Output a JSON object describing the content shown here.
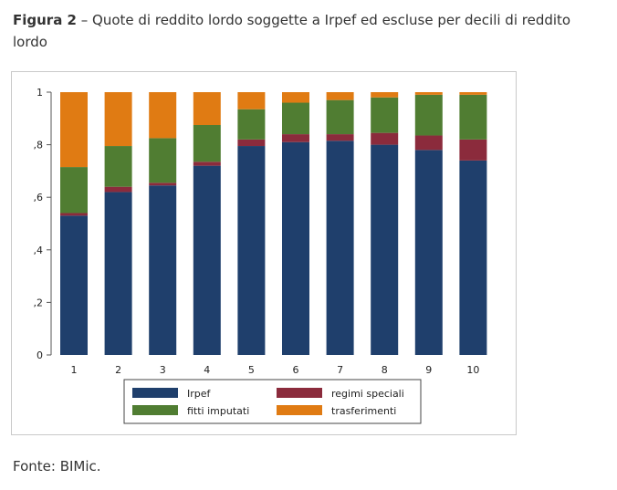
{
  "figure": {
    "label": "Figura 2",
    "separator": " – ",
    "title": "Quote di reddito lordo soggette a Irpef ed escluse per decili di reddito lordo"
  },
  "source": "Fonte: BIMic.",
  "colors": {
    "Irpef": "#1f3f6c",
    "regimi speciali": "#8b2b3c",
    "fitti imputati": "#507d32",
    "trasferimenti": "#e07b13"
  },
  "chart_data": {
    "type": "bar",
    "stacked": true,
    "categories": [
      "1",
      "2",
      "3",
      "4",
      "5",
      "6",
      "7",
      "8",
      "9",
      "10"
    ],
    "ylim": [
      0,
      1
    ],
    "yticks": [
      {
        "value": 0,
        "label": "0"
      },
      {
        "value": 0.2,
        "label": ",2"
      },
      {
        "value": 0.4,
        "label": ",4"
      },
      {
        "value": 0.6,
        "label": ",6"
      },
      {
        "value": 0.8,
        "label": ",8"
      },
      {
        "value": 1,
        "label": "1"
      }
    ],
    "grid": false,
    "legend_position": "bottom",
    "series": [
      {
        "name": "Irpef",
        "values": [
          0.53,
          0.62,
          0.645,
          0.72,
          0.795,
          0.81,
          0.815,
          0.8,
          0.78,
          0.74
        ]
      },
      {
        "name": "regimi speciali",
        "values": [
          0.01,
          0.02,
          0.01,
          0.015,
          0.025,
          0.03,
          0.025,
          0.045,
          0.055,
          0.08
        ]
      },
      {
        "name": "fitti imputati",
        "values": [
          0.175,
          0.155,
          0.17,
          0.14,
          0.115,
          0.12,
          0.13,
          0.135,
          0.155,
          0.17
        ]
      },
      {
        "name": "trasferimenti",
        "values": [
          0.285,
          0.205,
          0.175,
          0.125,
          0.065,
          0.04,
          0.03,
          0.02,
          0.01,
          0.01
        ]
      }
    ]
  }
}
